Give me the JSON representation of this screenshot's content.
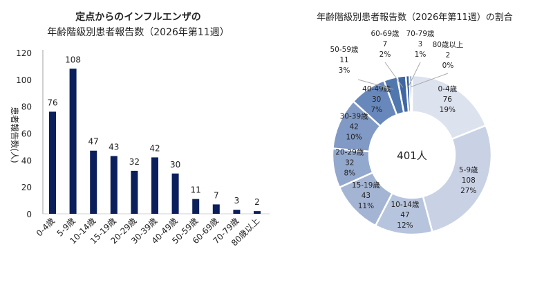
{
  "chart_data": [
    {
      "type": "bar",
      "title": [
        "定点からのインフルエンザの",
        "年齢階級別患者報告数（2026年第11週）"
      ],
      "ylabel": "患者報告数(人)",
      "xlabel": "",
      "categories": [
        "0-4歳",
        "5-9歳",
        "10-14歳",
        "15-19歳",
        "20-29歳",
        "30-39歳",
        "40-49歳",
        "50-59歳",
        "60-69歳",
        "70-79歳",
        "80歳以上"
      ],
      "values": [
        76,
        108,
        47,
        43,
        32,
        42,
        30,
        11,
        7,
        3,
        2
      ],
      "ylim": [
        0,
        120
      ],
      "yticks": [
        0,
        20,
        40,
        60,
        80,
        100,
        120
      ],
      "grid": false,
      "bar_color": "#0b1f5c"
    },
    {
      "type": "pie",
      "donut": true,
      "title": "年齢階級別患者報告数（2026年第11週）の割合",
      "center_label": "401人",
      "categories": [
        "0-4歳",
        "5-9歳",
        "10-14歳",
        "15-19歳",
        "20-29歳",
        "30-39歳",
        "40-49歳",
        "50-59歳",
        "60-69歳",
        "70-79歳",
        "80歳以上"
      ],
      "values": [
        76,
        108,
        47,
        43,
        32,
        42,
        30,
        11,
        7,
        3,
        2
      ],
      "percent_labels": [
        "19%",
        "27%",
        "12%",
        "11%",
        "8%",
        "10%",
        "7%",
        "3%",
        "2%",
        "1%",
        "0%"
      ],
      "colors": [
        "#dce2ee",
        "#c9d2e5",
        "#b7c4dd",
        "#a4b5d4",
        "#93a8cd",
        "#8099c5",
        "#6888bc",
        "#5077ae",
        "#3f67a3",
        "#305a97",
        "#274f8c"
      ]
    }
  ]
}
